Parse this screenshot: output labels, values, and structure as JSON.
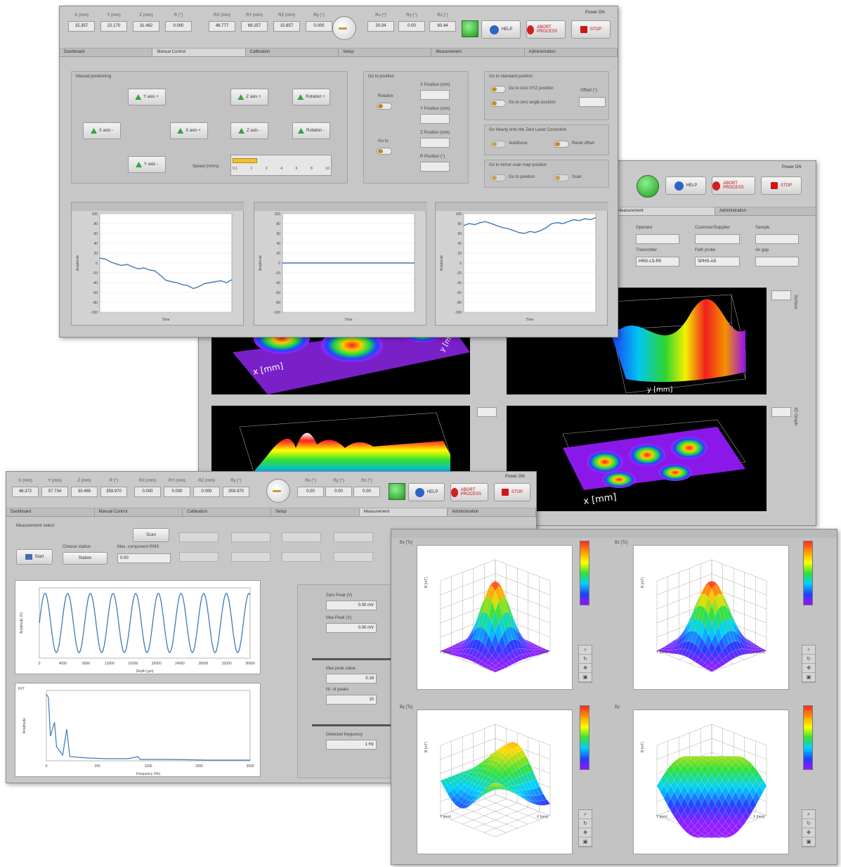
{
  "win1": {
    "readouts": [
      {
        "label": "X (mm)",
        "value": "15.357"
      },
      {
        "label": "Y (mm)",
        "value": "22.170"
      },
      {
        "label": "Z (mm)",
        "value": "31.482"
      },
      {
        "label": "R (°)",
        "value": "0.000"
      },
      {
        "label": "RX (mm)",
        "value": "48.777"
      },
      {
        "label": "RY (mm)",
        "value": "69.257"
      },
      {
        "label": "RZ (mm)",
        "value": "15.857"
      },
      {
        "label": "Ry (°)",
        "value": "0.000"
      },
      {
        "label": "Rx (°)",
        "value": "20.04"
      },
      {
        "label": "Ry (°)",
        "value": "0.00"
      },
      {
        "label": "Rz (°)",
        "value": "60.44"
      }
    ],
    "power_label": "Power ON",
    "info_label": "HELP",
    "abort_label": "ABORT PROCESS",
    "stop_label": "STOP",
    "tabs": [
      "Dashboard",
      "Manual Control",
      "Calibration",
      "Setup",
      "Measurement",
      "Administration"
    ],
    "active_tab": 1,
    "manual": {
      "title": "Manual positioning",
      "buttons": [
        "Y axis +",
        "Z axis +",
        "Rotation +",
        "X axis -",
        "X axis +",
        "Z axis -",
        "Rotation -",
        "Y axis -"
      ],
      "speed_label": "Speed (mm/s)",
      "speed_ticks": [
        "0.1",
        "1",
        "2",
        "4",
        "6",
        "8",
        "10"
      ],
      "speed_fraction": 0.25
    },
    "abs": {
      "title": "Go to position",
      "fields": [
        {
          "label": "X Position (mm)",
          "value": ""
        },
        {
          "label": "Y Position (mm)",
          "value": ""
        },
        {
          "label": "Z Position (mm)",
          "value": ""
        },
        {
          "label": "R Position (°)",
          "value": ""
        }
      ],
      "toggle_labels": [
        "Relative",
        "Go to"
      ]
    },
    "right_panels": [
      {
        "title": "Go to standard position",
        "items": [
          "Go to zero XYZ position",
          "Go to zero angle position"
        ],
        "offset_label": "Offset (°)"
      },
      {
        "title": "Go Nearly onto the Zero Laser Correction",
        "items": [
          "Autofocus",
          "Reset offset"
        ]
      },
      {
        "title": "Go to mirror scan map position",
        "items": [
          "Go to position",
          "Scan"
        ]
      }
    ],
    "charts": [
      {
        "xlabel": "Time",
        "ylabel": "Amplitude",
        "yticks": [
          "100",
          "80",
          "60",
          "40",
          "20",
          "0",
          "-20",
          "-40",
          "-60",
          "-80",
          "-100"
        ]
      },
      {
        "xlabel": "Time",
        "ylabel": "Amplitude",
        "yticks": [
          "100",
          "80",
          "60",
          "40",
          "20",
          "0",
          "-20",
          "-40",
          "-60",
          "-80",
          "-100"
        ]
      },
      {
        "xlabel": "Time",
        "ylabel": "Amplitude",
        "yticks": [
          "100",
          "80",
          "60",
          "40",
          "20",
          "0",
          "-20",
          "-40",
          "-60",
          "-80",
          "-100"
        ]
      }
    ]
  },
  "win2": {
    "power_label": "Power ON",
    "info_label": "HELP",
    "abort_label": "ABORT PROCESS",
    "stop_label": "STOP",
    "tabs": [
      "Measurement",
      "Administration"
    ],
    "fields": [
      {
        "label": "Operator",
        "value": ""
      },
      {
        "label": "Customer/Supplier",
        "value": ""
      },
      {
        "label": "Sample",
        "value": ""
      },
      {
        "label": "Transmitter",
        "value": "HRG-LS-R5"
      },
      {
        "label": "Path probe",
        "value": "SPHS-AS"
      },
      {
        "label": "Air gap",
        "value": ""
      }
    ],
    "axis_label_x": "x [mm]",
    "axis_label_y": "y [mm]",
    "side_label_right": "Surface",
    "side_label_bottom": "3D Graph"
  },
  "win3": {
    "readouts": [
      {
        "label": "X (mm)",
        "value": "48.372"
      },
      {
        "label": "Y (mm)",
        "value": "57.734"
      },
      {
        "label": "Z (mm)",
        "value": "33.465"
      },
      {
        "label": "R (°)",
        "value": "359.970"
      },
      {
        "label": "RX (mm)",
        "value": "0.000"
      },
      {
        "label": "RY (mm)",
        "value": "0.000"
      },
      {
        "label": "RZ (mm)",
        "value": "0.000"
      },
      {
        "label": "Ry (°)",
        "value": "359.970"
      },
      {
        "label": "Rx (°)",
        "value": "0.00"
      },
      {
        "label": "Ry (°)",
        "value": "0.00"
      },
      {
        "label": "Rz (°)",
        "value": "0.00"
      }
    ],
    "power_label": "Power ON",
    "info_label": "HELP",
    "abort_label": "ABORT PROCESS",
    "stop_label": "STOP",
    "tabs": [
      "Dashboard",
      "Manual Control",
      "Calibration",
      "Setup",
      "Measurement",
      "Administration"
    ],
    "active_tab": 4,
    "measure_label": "Measurement select",
    "start_label": "Start",
    "scan_label": "Scan",
    "choose_label": "Choose station",
    "choose_value": "Station",
    "max_label": "Max. component RMS",
    "max_value": "0.00",
    "chart_top": {
      "xlabel": "Depth (µm)",
      "ylabel": "Amplitude (V)",
      "xticks": [
        "0",
        "4000",
        "8000",
        "12000",
        "16000",
        "20000",
        "24000",
        "28000",
        "32000",
        "36000"
      ]
    },
    "chart_bottom": {
      "title": "FFT",
      "xlabel": "Frequency (Hz)",
      "ylabel": "Amplitude",
      "xticks": [
        "0",
        "200",
        "1000",
        "2000",
        "3000"
      ]
    },
    "side_fields": [
      {
        "label": "Zero Peak (V)",
        "value": "0.00 mV"
      },
      {
        "label": "Max Peak (V)",
        "value": "0.00 mV"
      },
      {
        "label": "Max peak value",
        "value": "0.18"
      },
      {
        "label": "Nr. of peaks",
        "value": "10"
      },
      {
        "label": "Detected frequency",
        "value": "1 Hz"
      }
    ]
  },
  "win4": {
    "titles": [
      "Bx [Ts]",
      "Bz [Ts]",
      "By [Ts]",
      "By"
    ],
    "axis_x": "X [mm]",
    "axis_y": "Y [mm]",
    "axis_z": "B [mT]"
  },
  "colors": {
    "win_bg": "#c7c7c7",
    "chart_line": "#3a7ab8",
    "led_green": "#1d9a1d",
    "stop_red": "#d01515"
  }
}
